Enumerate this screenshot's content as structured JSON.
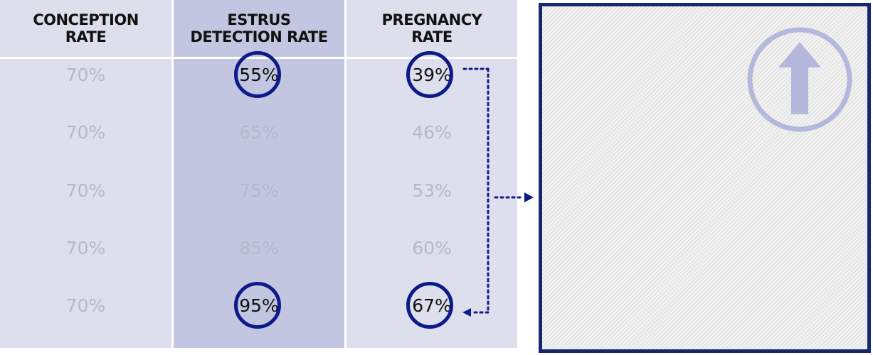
{
  "table": {
    "headers": [
      "CONCEPTION\nRATE",
      "ESTRUS\nDETECTION RATE",
      "PREGNANCY\nRATE"
    ],
    "conception": [
      "70%",
      "70%",
      "70%",
      "70%",
      "70%"
    ],
    "estrus_detection": [
      "55%",
      "65%",
      "75%",
      "85%",
      "95%"
    ],
    "pregnancy": [
      "39%",
      "46%",
      "53%",
      "60%",
      "67%"
    ]
  },
  "highlighted": [
    "55%",
    "39%",
    "95%",
    "67%"
  ],
  "colors": {
    "ring": "#0d1a8a",
    "panel_border": "#17296e",
    "faded_text": "#b5b8c8",
    "icon": "#b3b8dc"
  },
  "icons": {
    "panel_icon": "up-arrow-circle-icon"
  }
}
